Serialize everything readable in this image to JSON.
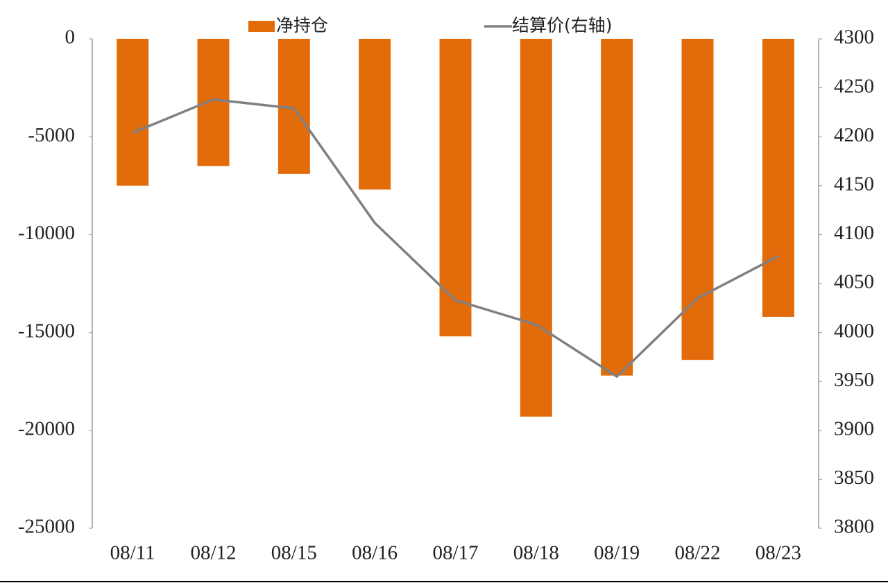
{
  "chart_data": {
    "type": "bar_line",
    "categories": [
      "08/11",
      "08/12",
      "08/15",
      "08/16",
      "08/17",
      "08/18",
      "08/19",
      "08/22",
      "08/23"
    ],
    "series": [
      {
        "name": "净持仓",
        "type": "bar",
        "color": "#e36c0a",
        "values": [
          -7500,
          -6500,
          -6900,
          -7700,
          -15200,
          -19300,
          -17200,
          -16400,
          -14200
        ]
      },
      {
        "name": "结算价(右轴)",
        "type": "line",
        "axis": "y2",
        "color": "#808080",
        "values": [
          4204,
          4238,
          4229,
          4112,
          4033,
          4008,
          3955,
          4035,
          4078
        ]
      }
    ],
    "ylim": [
      -25000,
      0
    ],
    "yticks": [
      -25000,
      -20000,
      -15000,
      -10000,
      -5000,
      0
    ],
    "y2lim": [
      3800,
      4300
    ],
    "y2ticks": [
      3800,
      3850,
      3900,
      3950,
      4000,
      4050,
      4100,
      4150,
      4200,
      4250,
      4300
    ],
    "legend": "top",
    "grid": false
  }
}
